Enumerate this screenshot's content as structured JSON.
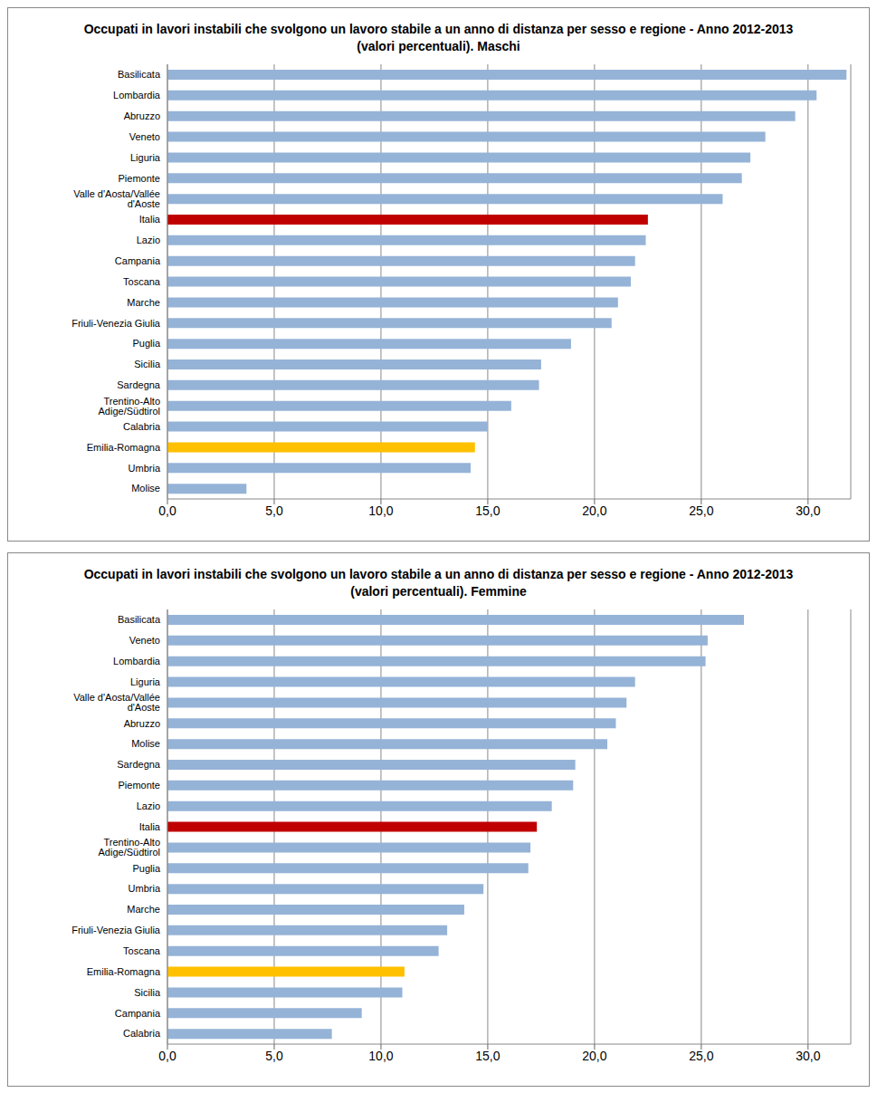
{
  "chart_data": [
    {
      "type": "bar",
      "orientation": "horizontal",
      "grid": true,
      "title": "Occupati in lavori instabili che svolgono un lavoro stabile a un anno di distanza per sesso e regione - Anno 2012-2013",
      "subtitle": "(valori percentuali). Maschi",
      "categories": [
        "Basilicata",
        "Lombardia",
        "Abruzzo",
        "Veneto",
        "Liguria",
        "Piemonte",
        "Valle d'Aosta/Vallée d'Aoste",
        "Italia",
        "Lazio",
        "Campania",
        "Toscana",
        "Marche",
        "Friuli-Venezia Giulia",
        "Puglia",
        "Sicilia",
        "Sardegna",
        "Trentino-Alto Adige/Südtirol",
        "Calabria",
        "Emilia-Romagna",
        "Umbria",
        "Molise"
      ],
      "values": [
        31.8,
        30.4,
        29.4,
        28.0,
        27.3,
        26.9,
        26.0,
        22.5,
        22.4,
        21.9,
        21.7,
        21.1,
        20.8,
        18.9,
        17.5,
        17.4,
        16.1,
        15.0,
        14.4,
        14.2,
        3.7
      ],
      "colors": [
        "#95B3D7",
        "#95B3D7",
        "#95B3D7",
        "#95B3D7",
        "#95B3D7",
        "#95B3D7",
        "#95B3D7",
        "#C00000",
        "#95B3D7",
        "#95B3D7",
        "#95B3D7",
        "#95B3D7",
        "#95B3D7",
        "#95B3D7",
        "#95B3D7",
        "#95B3D7",
        "#95B3D7",
        "#95B3D7",
        "#FFC000",
        "#95B3D7",
        "#95B3D7"
      ],
      "xlim": [
        0,
        32
      ],
      "xticks": [
        {
          "value": 0,
          "label": "0,0"
        },
        {
          "value": 5,
          "label": "5,0"
        },
        {
          "value": 10,
          "label": "10,0"
        },
        {
          "value": 15,
          "label": "15,0"
        },
        {
          "value": 20,
          "label": "20,0"
        },
        {
          "value": 25,
          "label": "25,0"
        },
        {
          "value": 30,
          "label": "30,0"
        }
      ]
    },
    {
      "type": "bar",
      "orientation": "horizontal",
      "grid": true,
      "title": "Occupati in lavori instabili che svolgono un lavoro stabile a un anno di distanza per sesso e regione - Anno 2012-2013",
      "subtitle": "(valori percentuali). Femmine",
      "categories": [
        "Basilicata",
        "Veneto",
        "Lombardia",
        "Liguria",
        "Valle d'Aosta/Vallée d'Aoste",
        "Abruzzo",
        "Molise",
        "Sardegna",
        "Piemonte",
        "Lazio",
        "Italia",
        "Trentino-Alto Adige/Südtirol",
        "Puglia",
        "Umbria",
        "Marche",
        "Friuli-Venezia Giulia",
        "Toscana",
        "Emilia-Romagna",
        "Sicilia",
        "Campania",
        "Calabria"
      ],
      "values": [
        27.0,
        25.3,
        25.2,
        21.9,
        21.5,
        21.0,
        20.6,
        19.1,
        19.0,
        18.0,
        17.3,
        17.0,
        16.9,
        14.8,
        13.9,
        13.1,
        12.7,
        11.1,
        11.0,
        9.1,
        7.7
      ],
      "colors": [
        "#95B3D7",
        "#95B3D7",
        "#95B3D7",
        "#95B3D7",
        "#95B3D7",
        "#95B3D7",
        "#95B3D7",
        "#95B3D7",
        "#95B3D7",
        "#95B3D7",
        "#C00000",
        "#95B3D7",
        "#95B3D7",
        "#95B3D7",
        "#95B3D7",
        "#95B3D7",
        "#95B3D7",
        "#FFC000",
        "#95B3D7",
        "#95B3D7",
        "#95B3D7"
      ],
      "xlim": [
        0,
        32
      ],
      "xticks": [
        {
          "value": 0,
          "label": "0,0"
        },
        {
          "value": 5,
          "label": "5,0"
        },
        {
          "value": 10,
          "label": "10,0"
        },
        {
          "value": 15,
          "label": "15,0"
        },
        {
          "value": 20,
          "label": "20,0"
        },
        {
          "value": 25,
          "label": "25,0"
        },
        {
          "value": 30,
          "label": "30,0"
        }
      ]
    }
  ]
}
